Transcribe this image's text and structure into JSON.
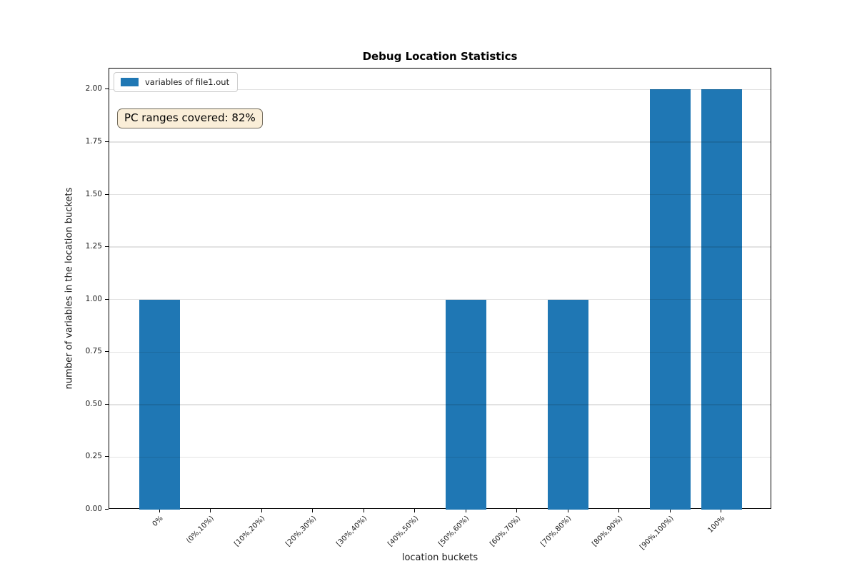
{
  "title": "Debug Location Statistics",
  "legend": {
    "label": "variables of file1.out",
    "swatch_color": "#1f77b4"
  },
  "annotation": {
    "text": "PC ranges covered: 82%",
    "bg_color": "#faeed8",
    "border_color": "#70695a"
  },
  "chart_data": {
    "type": "bar",
    "title": "Debug Location Statistics",
    "xlabel": "location buckets",
    "ylabel": "number of variables in the location buckets",
    "categories": [
      "0%",
      "(0%,10%)",
      "[10%,20%)",
      "[20%,30%)",
      "[30%,40%)",
      "[40%,50%)",
      "[50%,60%)",
      "[60%,70%)",
      "[70%,80%)",
      "[80%,90%)",
      "[90%,100%)",
      "100%"
    ],
    "series": [
      {
        "name": "variables of file1.out",
        "values": [
          1,
          0,
          0,
          0,
          0,
          0,
          1,
          0,
          1,
          0,
          2,
          2
        ]
      }
    ],
    "bar_color": "#1f77b4",
    "bar_width_fraction": 0.8,
    "ylim": [
      0,
      2.1
    ],
    "yticks": [
      0.0,
      0.25,
      0.5,
      0.75,
      1.0,
      1.25,
      1.5,
      1.75,
      2.0
    ],
    "ytick_label_format": "2-decimals",
    "grid": "horizontal",
    "grid_color": "#e2e2e2",
    "legend_position": "upper left",
    "x_tick_label_rotation_deg": 45
  }
}
